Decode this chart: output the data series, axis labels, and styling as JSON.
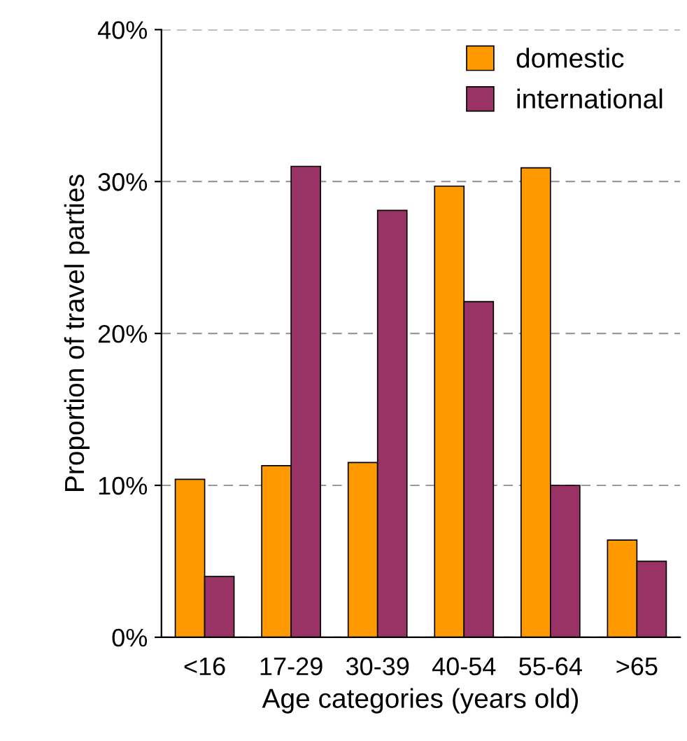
{
  "chart_data": {
    "type": "bar",
    "xlabel": "Age categories (years old)",
    "ylabel": "Proportion of travel parties",
    "categories": [
      "<16",
      "17-29",
      "30-39",
      "40-54",
      "55-64",
      ">65"
    ],
    "series": [
      {
        "name": "domestic",
        "color": "#ff9900",
        "values": [
          10.4,
          11.3,
          11.5,
          29.7,
          30.9,
          6.4
        ]
      },
      {
        "name": "international",
        "color": "#993366",
        "values": [
          4.0,
          31.0,
          28.1,
          22.1,
          10.0,
          5.0
        ]
      }
    ],
    "ylim": [
      0,
      40
    ],
    "yticks": [
      {
        "value": 0,
        "label": "0%"
      },
      {
        "value": 10,
        "label": "10%"
      },
      {
        "value": 20,
        "label": "20%"
      },
      {
        "value": 30,
        "label": "30%"
      },
      {
        "value": 40,
        "label": "40%"
      }
    ],
    "grid": "y",
    "legend": "top right"
  }
}
